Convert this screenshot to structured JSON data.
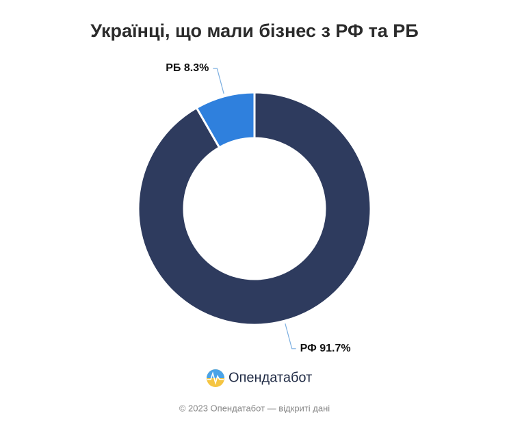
{
  "chart_data": {
    "type": "donut",
    "title": "Українці, що мали бізнес з РФ та РБ",
    "categories": [
      "РФ",
      "РБ"
    ],
    "values": [
      91.7,
      8.3
    ],
    "value_labels": [
      "91.7%",
      "8.3%"
    ],
    "colors": [
      "#2e3b5e",
      "#2f80dd"
    ]
  },
  "brand": "Опендатабот",
  "footer": "© 2023 Опендатабот — відкриті дані"
}
